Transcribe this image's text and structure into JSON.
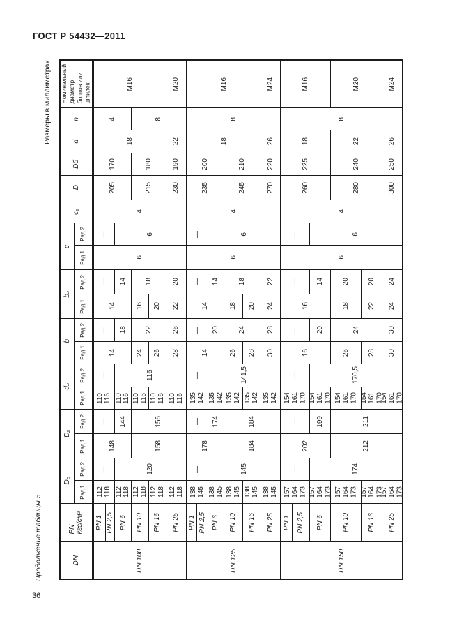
{
  "page": {
    "doc_number": "ГОСТ Р 54432—2011",
    "units_note": "Размеры в миллиметрах",
    "table_caption": "Продолжение таблицы 5",
    "page_number": "36"
  },
  "table": {
    "dn_groups": [
      "DN 100",
      "DN 125",
      "DN 150"
    ],
    "pn_values": [
      "PN 1",
      "PN 2,5",
      "PN 6",
      "PN 10",
      "PN 16",
      "PN 25"
    ],
    "row_series_labels": {
      "row2": "Ряд 2",
      "row1": "Ряд 1"
    },
    "bands": [
      {
        "id": "bolt_diameter",
        "label": "Номинальный\nдиаметр\nболтов или\nшпилек",
        "rows": [
          {
            "sublabel": null,
            "cells": [
              {
                "t": "M16",
                "s": 5
              },
              {
                "t": "M20",
                "s": 1
              },
              {
                "t": "M16",
                "s": 5
              },
              {
                "t": "M24",
                "s": 1
              },
              {
                "t": "M16",
                "s": 3
              },
              {
                "t": "M20",
                "s": 2
              },
              {
                "t": "M24",
                "s": 1
              }
            ]
          }
        ]
      },
      {
        "id": "n",
        "label": "n",
        "rows": [
          {
            "sublabel": null,
            "cells": [
              {
                "t": "4",
                "s": 3
              },
              {
                "t": "8",
                "s": 3
              },
              {
                "t": "8",
                "s": 6
              },
              {
                "t": "8",
                "s": 6
              }
            ]
          }
        ]
      },
      {
        "id": "d",
        "label": "d",
        "rows": [
          {
            "sublabel": null,
            "cells": [
              {
                "t": "18",
                "s": 5
              },
              {
                "t": "22",
                "s": 1
              },
              {
                "t": "18",
                "s": 5
              },
              {
                "t": "26",
                "s": 1
              },
              {
                "t": "18",
                "s": 3
              },
              {
                "t": "22",
                "s": 2
              },
              {
                "t": "26",
                "s": 1
              }
            ]
          }
        ]
      },
      {
        "id": "D_b",
        "label": "Dб",
        "rows": [
          {
            "sublabel": null,
            "cells": [
              {
                "t": "170",
                "s": 3
              },
              {
                "t": "180",
                "s": 2
              },
              {
                "t": "190",
                "s": 1
              },
              {
                "t": "200",
                "s": 3
              },
              {
                "t": "210",
                "s": 2
              },
              {
                "t": "220",
                "s": 1
              },
              {
                "t": "225",
                "s": 3
              },
              {
                "t": "240",
                "s": 2
              },
              {
                "t": "250",
                "s": 1
              }
            ]
          }
        ]
      },
      {
        "id": "D",
        "label": "D",
        "rows": [
          {
            "sublabel": null,
            "cells": [
              {
                "t": "205",
                "s": 3
              },
              {
                "t": "215",
                "s": 2
              },
              {
                "t": "230",
                "s": 1
              },
              {
                "t": "235",
                "s": 3
              },
              {
                "t": "245",
                "s": 2
              },
              {
                "t": "270",
                "s": 1
              },
              {
                "t": "260",
                "s": 3
              },
              {
                "t": "280",
                "s": 2
              },
              {
                "t": "300",
                "s": 1
              }
            ]
          }
        ]
      },
      {
        "id": "c2",
        "label": "c₂",
        "rows": [
          {
            "sublabel": null,
            "cells": [
              {
                "t": "4",
                "s": 6
              },
              {
                "t": "4",
                "s": 6
              },
              {
                "t": "4",
                "s": 6
              }
            ]
          }
        ]
      },
      {
        "id": "c",
        "label": "c",
        "rows": [
          {
            "sublabel": "Ряд 2",
            "cells": [
              {
                "t": "—",
                "s": 2
              },
              {
                "t": "6",
                "s": 4
              },
              {
                "t": "—",
                "s": 2
              },
              {
                "t": "6",
                "s": 4
              },
              {
                "t": "—",
                "s": 2
              },
              {
                "t": "6",
                "s": 4
              }
            ]
          },
          {
            "sublabel": "Ряд 1",
            "cells": [
              {
                "t": "6",
                "s": 6
              },
              {
                "t": "6",
                "s": 6
              },
              {
                "t": "6",
                "s": 6
              }
            ]
          }
        ]
      },
      {
        "id": "b4",
        "label": "b₄",
        "rows": [
          {
            "sublabel": "Ряд 2",
            "cells": [
              {
                "t": "—",
                "s": 2
              },
              {
                "t": "14",
                "s": 1
              },
              {
                "t": "18",
                "s": 2
              },
              {
                "t": "20",
                "s": 1
              },
              {
                "t": "—",
                "s": 2
              },
              {
                "t": "14",
                "s": 1
              },
              {
                "t": "18",
                "s": 2
              },
              {
                "t": "22",
                "s": 1
              },
              {
                "t": "—",
                "s": 2
              },
              {
                "t": "14",
                "s": 1
              },
              {
                "t": "20",
                "s": 1
              },
              {
                "t": "20",
                "s": 1
              },
              {
                "t": "24",
                "s": 1
              }
            ]
          },
          {
            "sublabel": "Ряд 1",
            "cells": [
              {
                "t": "14",
                "s": 3
              },
              {
                "t": "16",
                "s": 1
              },
              {
                "t": "20",
                "s": 1
              },
              {
                "t": "22",
                "s": 1
              },
              {
                "t": "14",
                "s": 3
              },
              {
                "t": "18",
                "s": 1
              },
              {
                "t": "20",
                "s": 1
              },
              {
                "t": "24",
                "s": 1
              },
              {
                "t": "16",
                "s": 3
              },
              {
                "t": "18",
                "s": 1
              },
              {
                "t": "22",
                "s": 1
              },
              {
                "t": "24",
                "s": 1
              }
            ]
          }
        ]
      },
      {
        "id": "b",
        "label": "b",
        "rows": [
          {
            "sublabel": "Ряд 2",
            "cells": [
              {
                "t": "—",
                "s": 2
              },
              {
                "t": "18",
                "s": 1
              },
              {
                "t": "22",
                "s": 2
              },
              {
                "t": "26",
                "s": 1
              },
              {
                "t": "—",
                "s": 2
              },
              {
                "t": "20",
                "s": 1
              },
              {
                "t": "24",
                "s": 2
              },
              {
                "t": "28",
                "s": 1
              },
              {
                "t": "—",
                "s": 2
              },
              {
                "t": "20",
                "s": 1
              },
              {
                "t": "24",
                "s": 2
              },
              {
                "t": "30",
                "s": 1
              }
            ]
          },
          {
            "sublabel": "Ряд 1",
            "cells": [
              {
                "t": "14",
                "s": 3
              },
              {
                "t": "24",
                "s": 1
              },
              {
                "t": "26",
                "s": 1
              },
              {
                "t": "28",
                "s": 1
              },
              {
                "t": "14",
                "s": 3
              },
              {
                "t": "26",
                "s": 1
              },
              {
                "t": "28",
                "s": 1
              },
              {
                "t": "30",
                "s": 1
              },
              {
                "t": "16",
                "s": 3
              },
              {
                "t": "26",
                "s": 1
              },
              {
                "t": "28",
                "s": 1
              },
              {
                "t": "30",
                "s": 1
              }
            ]
          }
        ]
      },
      {
        "id": "d4",
        "label": "d₄",
        "rows": [
          {
            "sublabel": "Ряд 2",
            "cells": [
              {
                "t": "—",
                "s": 2
              },
              {
                "t": "116",
                "s": 4
              },
              {
                "t": "—",
                "s": 2
              },
              {
                "t": "141,5",
                "s": 4
              },
              {
                "t": "—",
                "s": 2
              },
              {
                "t": "170,5",
                "s": 4
              }
            ]
          },
          {
            "sublabel": "Ряд 1",
            "cells": [
              {
                "t": "110\n116",
                "s": 2
              },
              {
                "t": "110\n116",
                "s": 1
              },
              {
                "t": "110\n116",
                "s": 1
              },
              {
                "t": "110\n116",
                "s": 1
              },
              {
                "t": "110\n116",
                "s": 1
              },
              {
                "t": "135\n142",
                "s": 2
              },
              {
                "t": "135\n142",
                "s": 1
              },
              {
                "t": "135\n142",
                "s": 1
              },
              {
                "t": "135\n142",
                "s": 1
              },
              {
                "t": "135\n142",
                "s": 1
              },
              {
                "t": "154\n161\n170",
                "s": 2
              },
              {
                "t": "154\n161\n170",
                "s": 1
              },
              {
                "t": "154\n161\n170",
                "s": 1
              },
              {
                "t": "154\n161\n170",
                "s": 1
              },
              {
                "t": "154\n161\n170",
                "s": 1
              }
            ]
          }
        ]
      },
      {
        "id": "D2",
        "label": "D₂",
        "rows": [
          {
            "sublabel": "Ряд 2",
            "cells": [
              {
                "t": "—",
                "s": 2
              },
              {
                "t": "144",
                "s": 1
              },
              {
                "t": "156",
                "s": 3
              },
              {
                "t": "—",
                "s": 2
              },
              {
                "t": "174",
                "s": 1
              },
              {
                "t": "184",
                "s": 3
              },
              {
                "t": "—",
                "s": 2
              },
              {
                "t": "199",
                "s": 1
              },
              {
                "t": "211",
                "s": 3
              }
            ]
          },
          {
            "sublabel": "Ряд 1",
            "cells": [
              {
                "t": "148",
                "s": 3
              },
              {
                "t": "158",
                "s": 3
              },
              {
                "t": "178",
                "s": 3
              },
              {
                "t": "184",
                "s": 3
              },
              {
                "t": "202",
                "s": 3
              },
              {
                "t": "212",
                "s": 3
              }
            ]
          }
        ]
      },
      {
        "id": "D0",
        "label": "D₀",
        "rows": [
          {
            "sublabel": "Ряд 2",
            "cells": [
              {
                "t": "—",
                "s": 2
              },
              {
                "t": "120",
                "s": 4
              },
              {
                "t": "—",
                "s": 2
              },
              {
                "t": "145",
                "s": 4
              },
              {
                "t": "—",
                "s": 2
              },
              {
                "t": "174",
                "s": 4
              }
            ]
          },
          {
            "sublabel": "Ряд 1",
            "cells": [
              {
                "t": "112\n118",
                "s": 2
              },
              {
                "t": "112\n118",
                "s": 1
              },
              {
                "t": "112\n118",
                "s": 1
              },
              {
                "t": "112\n118",
                "s": 1
              },
              {
                "t": "112\n118",
                "s": 1
              },
              {
                "t": "138\n145",
                "s": 2
              },
              {
                "t": "138\n145",
                "s": 1
              },
              {
                "t": "138\n145",
                "s": 1
              },
              {
                "t": "138\n145",
                "s": 1
              },
              {
                "t": "138\n145",
                "s": 1
              },
              {
                "t": "157\n164\n173",
                "s": 2
              },
              {
                "t": "157\n164\n173",
                "s": 1
              },
              {
                "t": "157\n164\n173",
                "s": 1
              },
              {
                "t": "157\n164\n173",
                "s": 1
              },
              {
                "t": "157\n164\n173",
                "s": 1
              }
            ]
          }
        ]
      },
      {
        "id": "PN",
        "label": "PN\nкгс/см²",
        "rows": [
          {
            "sublabel": null,
            "cells": [
              {
                "t": "PN 1",
                "s": 1
              },
              {
                "t": "PN 2,5",
                "s": 1
              },
              {
                "t": "PN 6",
                "s": 1
              },
              {
                "t": "PN 10",
                "s": 1
              },
              {
                "t": "PN 16",
                "s": 1
              },
              {
                "t": "PN 25",
                "s": 1
              },
              {
                "t": "PN 1",
                "s": 1
              },
              {
                "t": "PN 2,5",
                "s": 1
              },
              {
                "t": "PN 6",
                "s": 1
              },
              {
                "t": "PN 10",
                "s": 1
              },
              {
                "t": "PN 16",
                "s": 1
              },
              {
                "t": "PN 25",
                "s": 1
              },
              {
                "t": "PN 1",
                "s": 1
              },
              {
                "t": "PN 2,5",
                "s": 1
              },
              {
                "t": "PN 6",
                "s": 1
              },
              {
                "t": "PN 10",
                "s": 1
              },
              {
                "t": "PN 16",
                "s": 1
              },
              {
                "t": "PN 25",
                "s": 1
              }
            ]
          }
        ]
      },
      {
        "id": "DN",
        "label": "DN",
        "rows": [
          {
            "sublabel": null,
            "cells": [
              {
                "t": "DN 100",
                "s": 6
              },
              {
                "t": "DN 125",
                "s": 6
              },
              {
                "t": "DN 150",
                "s": 6
              }
            ]
          }
        ]
      }
    ]
  }
}
